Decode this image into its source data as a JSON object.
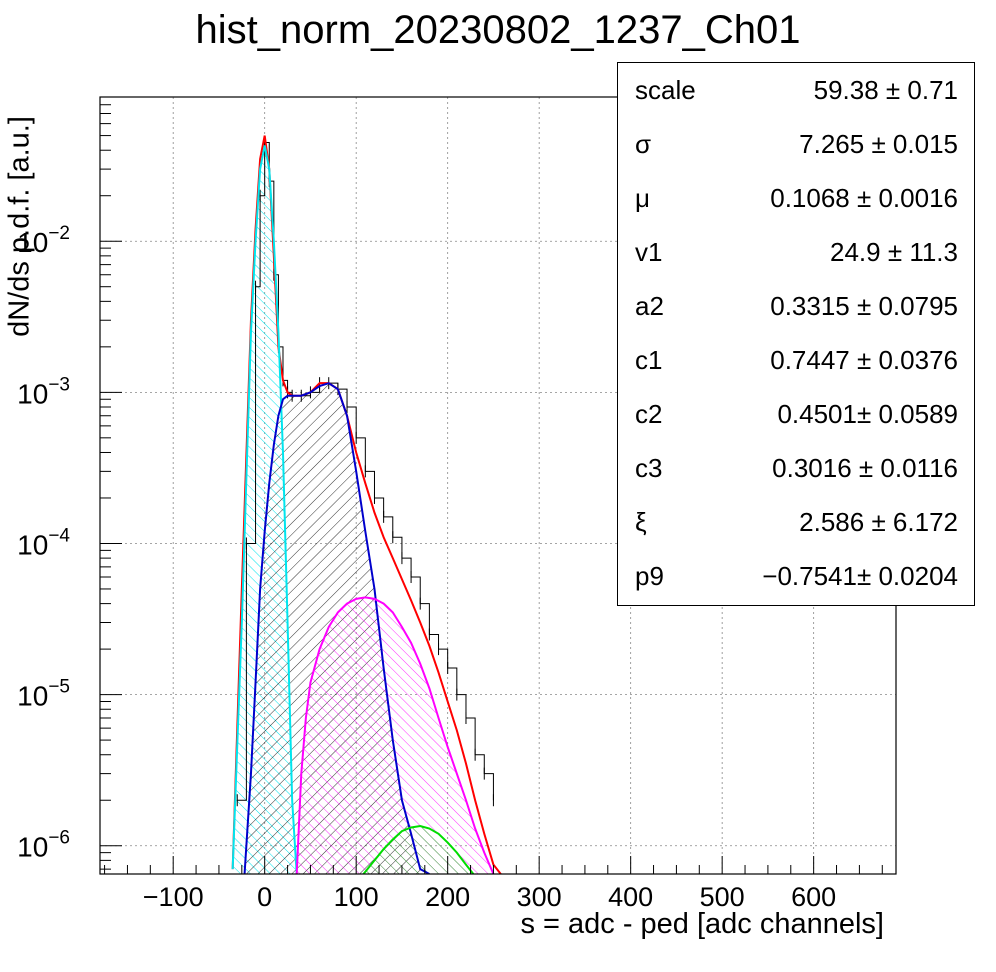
{
  "chart_data": {
    "type": "line",
    "title": "hist_norm_20230802_1237_Ch01",
    "xlabel": "s = adc - ped [adc channels]",
    "ylabel": "dN/ds p.d.f. [a.u.]",
    "xlim": [
      -180,
      690
    ],
    "ylim": [
      6.5e-07,
      0.09
    ],
    "yscale": "log",
    "grid": true,
    "x_ticks": [
      "−100",
      "0",
      "100",
      "200",
      "300",
      "400",
      "500",
      "600"
    ],
    "y_ticks": [
      {
        "base": "10",
        "exp": "−2",
        "value": 0.01
      },
      {
        "base": "10",
        "exp": "−3",
        "value": 0.001
      },
      {
        "base": "10",
        "exp": "−4",
        "value": 0.0001
      },
      {
        "base": "10",
        "exp": "−5",
        "value": 1e-05
      },
      {
        "base": "10",
        "exp": "−6",
        "value": 1e-06
      }
    ],
    "series": [
      {
        "color": "#000000",
        "style": "histogram",
        "x": [
          -30,
          -20,
          -10,
          -5,
          0,
          5,
          10,
          15,
          20,
          25,
          30,
          40,
          50,
          60,
          70,
          80,
          90,
          100,
          110,
          120,
          130,
          140,
          150,
          160,
          170,
          180,
          190,
          200,
          210,
          220,
          230,
          240,
          250
        ],
        "y": [
          2e-06,
          0.0001,
          0.005,
          0.02,
          0.045,
          0.025,
          0.006,
          0.002,
          0.0012,
          0.001,
          0.00095,
          0.00095,
          0.001,
          0.00115,
          0.00115,
          0.00105,
          0.0008,
          0.0005,
          0.0003,
          0.0002,
          0.00015,
          0.00011,
          8e-05,
          6e-05,
          4e-05,
          2.5e-05,
          2e-05,
          1.5e-05,
          1e-05,
          7e-06,
          4e-06,
          3e-06,
          2e-06
        ]
      },
      {
        "color": "#ff0000",
        "style": "line",
        "x": [
          -35,
          -25,
          -15,
          -10,
          -5,
          0,
          5,
          10,
          15,
          20,
          25,
          30,
          40,
          50,
          60,
          70,
          80,
          90,
          100,
          110,
          120,
          130,
          140,
          150,
          160,
          170,
          180,
          190,
          200,
          210,
          220,
          230,
          240,
          250,
          258
        ],
        "y": [
          7e-07,
          5e-05,
          0.003,
          0.012,
          0.035,
          0.05,
          0.03,
          0.008,
          0.002,
          0.0012,
          0.001,
          0.00095,
          0.00095,
          0.001,
          0.00115,
          0.00115,
          0.00105,
          0.0007,
          0.0004,
          0.00025,
          0.00016,
          0.00011,
          8e-05,
          5.8e-05,
          4.2e-05,
          3e-05,
          2.1e-05,
          1.4e-05,
          9e-06,
          5.8e-06,
          3.5e-06,
          2e-06,
          1.2e-06,
          7.5e-07,
          6.5e-07
        ]
      },
      {
        "color": "#00e5ee",
        "style": "filled",
        "x": [
          -35,
          -25,
          -15,
          -10,
          -5,
          0,
          5,
          10,
          15,
          20,
          25,
          30,
          35
        ],
        "y": [
          7e-07,
          3e-05,
          0.0025,
          0.01,
          0.03,
          0.043,
          0.03,
          0.01,
          0.0025,
          0.0004,
          3e-05,
          2e-06,
          6.5e-07
        ]
      },
      {
        "color": "#0000cc",
        "style": "filled",
        "x": [
          -22,
          -15,
          -10,
          -5,
          0,
          5,
          10,
          15,
          20,
          25,
          30,
          40,
          50,
          60,
          70,
          80,
          90,
          100,
          110,
          120,
          130,
          140,
          150,
          160,
          170,
          180
        ],
        "y": [
          6.5e-07,
          3e-06,
          1.2e-05,
          5e-05,
          0.00012,
          0.00025,
          0.00045,
          0.0007,
          0.0009,
          0.00095,
          0.00095,
          0.00095,
          0.001,
          0.0011,
          0.00115,
          0.00105,
          0.0007,
          0.0003,
          0.00012,
          5e-05,
          1.5e-05,
          5e-06,
          2e-06,
          1.2e-06,
          7e-07,
          6.5e-07
        ]
      },
      {
        "color": "#ff00ff",
        "style": "filled",
        "x": [
          35,
          40,
          45,
          50,
          60,
          70,
          80,
          90,
          100,
          110,
          120,
          130,
          140,
          150,
          160,
          170,
          180,
          190,
          200,
          210,
          220,
          230,
          240,
          250
        ],
        "y": [
          6.5e-07,
          3e-06,
          7e-06,
          1.2e-05,
          2e-05,
          2.8e-05,
          3.5e-05,
          4e-05,
          4.3e-05,
          4.4e-05,
          4.3e-05,
          4e-05,
          3.5e-05,
          2.8e-05,
          2.2e-05,
          1.6e-05,
          1.1e-05,
          7e-06,
          4.5e-06,
          3e-06,
          2e-06,
          1.3e-06,
          9e-07,
          6.5e-07
        ]
      },
      {
        "color": "#00dd00",
        "style": "filled",
        "x": [
          108,
          120,
          130,
          140,
          150,
          160,
          170,
          180,
          190,
          200,
          210,
          220,
          228
        ],
        "y": [
          6.5e-07,
          8e-07,
          9.5e-07,
          1.1e-06,
          1.25e-06,
          1.32e-06,
          1.35e-06,
          1.3e-06,
          1.2e-06,
          1.05e-06,
          9e-07,
          7.5e-07,
          6.5e-07
        ]
      }
    ]
  },
  "stats": [
    {
      "name": "scale",
      "value": "59.38 ± 0.71"
    },
    {
      "name": "σ",
      "value": "7.265 ± 0.015"
    },
    {
      "name": "μ",
      "value": "0.1068 ± 0.0016"
    },
    {
      "name": "v1",
      "value": "24.9 ± 11.3"
    },
    {
      "name": "a2",
      "value": "0.3315 ± 0.0795"
    },
    {
      "name": "c1",
      "value": "0.7447 ± 0.0376"
    },
    {
      "name": "c2",
      "value": "0.4501± 0.0589"
    },
    {
      "name": "c3",
      "value": "0.3016 ± 0.0116"
    },
    {
      "name": "ξ",
      "value": "2.586 ± 6.172"
    },
    {
      "name": "p9",
      "value": "−0.7541± 0.0204"
    }
  ]
}
